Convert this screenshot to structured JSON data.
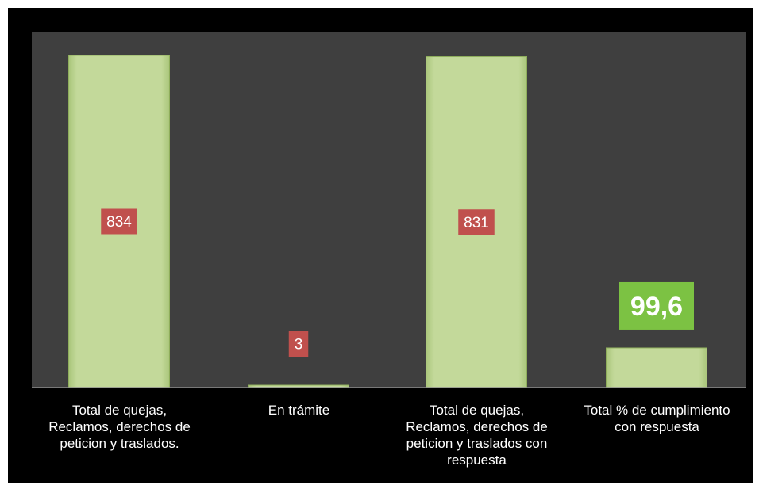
{
  "chart_data": {
    "type": "bar",
    "categories": [
      "Total de quejas, Reclamos, derechos de peticion y traslados.",
      "En trámite",
      "Total de quejas, Reclamos, derechos de peticion y traslados con respuesta",
      "Total % de cumplimiento con respuesta"
    ],
    "category_lines": [
      [
        "Total de quejas,",
        "Reclamos, derechos de",
        "peticion y traslados."
      ],
      [
        "En trámite"
      ],
      [
        "Total de quejas,",
        "Reclamos, derechos de",
        "peticion y traslados con",
        "respuesta"
      ],
      [
        "Total % de cumplimiento",
        "con respuesta"
      ]
    ],
    "values": [
      834,
      3,
      831,
      99.6
    ],
    "data_labels": [
      "834",
      "3",
      "831",
      "99,6"
    ],
    "ylim": [
      0,
      834
    ],
    "grid": false,
    "legend": "none",
    "colors": {
      "bar_fill": "#c3d99a",
      "bar_edge": "#8fae5c",
      "plot_bg": "#3f3f3f",
      "outer_bg": "#000000",
      "label_red": "#c0504d",
      "label_green": "#7cc243",
      "axis_line": "#8c8c8c",
      "text": "#ffffff"
    }
  }
}
